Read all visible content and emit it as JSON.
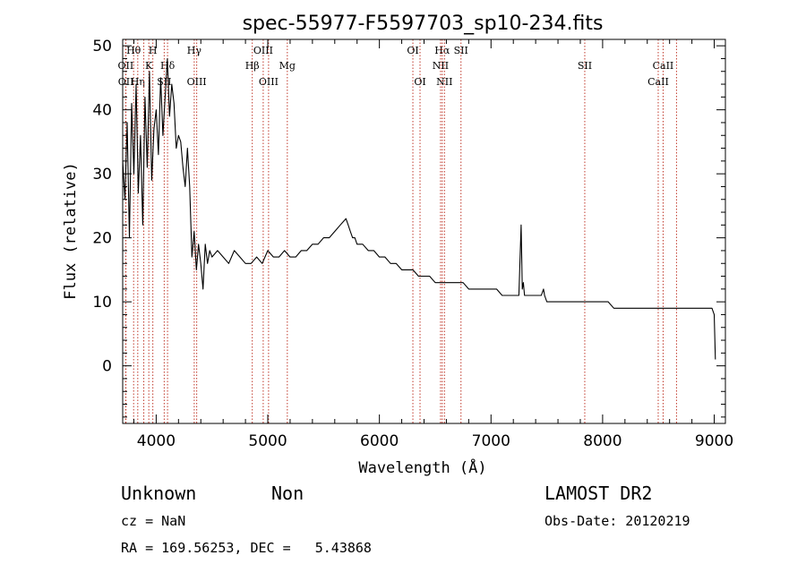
{
  "chart_data": {
    "type": "line",
    "title": "spec-55977-F5597703_sp10-234.fits",
    "xlabel": "Wavelength (Å)",
    "ylabel": "Flux (relative)",
    "xlim": [
      3700,
      9100
    ],
    "ylim": [
      -9,
      51
    ],
    "xticks": [
      "4000",
      "5000",
      "6000",
      "7000",
      "8000",
      "9000"
    ],
    "yticks": [
      "0",
      "10",
      "20",
      "30",
      "40",
      "50"
    ],
    "series": [
      {
        "color": "#000000",
        "x": [
          3700,
          3720,
          3740,
          3760,
          3780,
          3800,
          3820,
          3840,
          3860,
          3880,
          3900,
          3920,
          3940,
          3960,
          3980,
          4000,
          4020,
          4040,
          4060,
          4080,
          4100,
          4120,
          4140,
          4160,
          4180,
          4200,
          4220,
          4240,
          4260,
          4280,
          4300,
          4320,
          4340,
          4360,
          4380,
          4400,
          4420,
          4440,
          4460,
          4480,
          4500,
          4550,
          4600,
          4650,
          4700,
          4750,
          4800,
          4850,
          4900,
          4950,
          5000,
          5050,
          5100,
          5150,
          5200,
          5250,
          5300,
          5350,
          5400,
          5450,
          5500,
          5550,
          5600,
          5650,
          5700,
          5720,
          5740,
          5760,
          5780,
          5800,
          5850,
          5900,
          5950,
          6000,
          6050,
          6100,
          6150,
          6200,
          6250,
          6300,
          6350,
          6400,
          6450,
          6500,
          6550,
          6600,
          6650,
          6700,
          6750,
          6800,
          6850,
          6900,
          6950,
          7000,
          7050,
          7100,
          7150,
          7200,
          7250,
          7270,
          7280,
          7290,
          7300,
          7350,
          7400,
          7450,
          7470,
          7480,
          7500,
          7550,
          7600,
          7650,
          7700,
          7750,
          7800,
          7850,
          7900,
          7950,
          8000,
          8050,
          8100,
          8150,
          8200,
          8250,
          8300,
          8350,
          8400,
          8450,
          8500,
          8550,
          8600,
          8650,
          8700,
          8750,
          8800,
          8850,
          8900,
          8950,
          8980,
          9000,
          9010
        ],
        "y": [
          32,
          26,
          38,
          20,
          41,
          30,
          44,
          27,
          36,
          22,
          42,
          31,
          46,
          29,
          37,
          40,
          33,
          45,
          36,
          42,
          48,
          39,
          44,
          41,
          34,
          36,
          35,
          31,
          28,
          34,
          28,
          17,
          21,
          15,
          19,
          16,
          12,
          19,
          16,
          18,
          17,
          18,
          17,
          16,
          18,
          17,
          16,
          16,
          17,
          16,
          18,
          17,
          17,
          18,
          17,
          17,
          18,
          18,
          19,
          19,
          20,
          20,
          21,
          22,
          23,
          22,
          21,
          20,
          20,
          19,
          19,
          18,
          18,
          17,
          17,
          16,
          16,
          15,
          15,
          15,
          14,
          14,
          14,
          13,
          13,
          13,
          13,
          13,
          13,
          12,
          12,
          12,
          12,
          12,
          12,
          11,
          11,
          11,
          11,
          22,
          12,
          13,
          11,
          11,
          11,
          11,
          12,
          11,
          10,
          10,
          10,
          10,
          10,
          10,
          10,
          10,
          10,
          10,
          10,
          10,
          9,
          9,
          9,
          9,
          9,
          9,
          9,
          9,
          9,
          9,
          9,
          9,
          9,
          9,
          9,
          9,
          9,
          9,
          9,
          8,
          1
        ]
      }
    ],
    "line_markers": [
      {
        "label": "Hθ",
        "x": 3798,
        "row": 0
      },
      {
        "label": "H",
        "x": 3970,
        "row": 0
      },
      {
        "label": "Hγ",
        "x": 4341,
        "row": 0
      },
      {
        "label": "OIII",
        "x": 4959,
        "row": 0
      },
      {
        "label": "OI",
        "x": 6300,
        "row": 0
      },
      {
        "label": "Hα",
        "x": 6563,
        "row": 0
      },
      {
        "label": "SII",
        "x": 6731,
        "row": 0
      },
      {
        "label": "OII",
        "x": 3727,
        "row": 1
      },
      {
        "label": "K",
        "x": 3934,
        "row": 1
      },
      {
        "label": "Hδ",
        "x": 4102,
        "row": 1
      },
      {
        "label": "Hβ",
        "x": 4861,
        "row": 1
      },
      {
        "label": "Mg",
        "x": 5175,
        "row": 1
      },
      {
        "label": "NII",
        "x": 6548,
        "row": 1
      },
      {
        "label": "SII",
        "x": 7840,
        "row": 1
      },
      {
        "label": "CaII",
        "x": 8542,
        "row": 1
      },
      {
        "label": "OII",
        "x": 3729,
        "row": 2
      },
      {
        "label": "Hη",
        "x": 3835,
        "row": 2
      },
      {
        "label": "SII",
        "x": 4072,
        "row": 2
      },
      {
        "label": "OIII",
        "x": 4363,
        "row": 2
      },
      {
        "label": "OIII",
        "x": 5007,
        "row": 2
      },
      {
        "label": "OI",
        "x": 6364,
        "row": 2
      },
      {
        "label": "NII",
        "x": 6583,
        "row": 2
      },
      {
        "label": "CaII",
        "x": 8498,
        "row": 2
      }
    ],
    "extra_marker_lines": [
      3889,
      8662
    ]
  },
  "info": {
    "object_class": "Unknown",
    "object_subclass": "Non",
    "survey": "LAMOST DR2",
    "redshift": "cz = NaN",
    "obs_date": "Obs-Date: 20120219",
    "coords": "RA = 169.56253, DEC =   5.43868"
  }
}
